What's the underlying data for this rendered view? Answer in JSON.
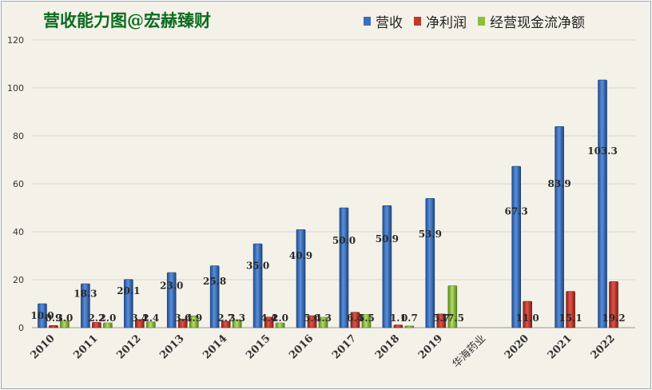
{
  "chart_data": {
    "type": "bar",
    "title": "营收能力图@宏赫臻财",
    "categories": [
      "2010",
      "2011",
      "2012",
      "2013",
      "2014",
      "2015",
      "2016",
      "2017",
      "2018",
      "2019",
      "华海药业",
      "2020",
      "2021",
      "2022"
    ],
    "series": [
      {
        "name": "营收",
        "color": "#3a6fbf",
        "values": [
          10.0,
          18.3,
          20.1,
          23.0,
          25.8,
          35.0,
          40.9,
          50.0,
          50.9,
          53.9,
          null,
          67.3,
          83.9,
          103.3
        ]
      },
      {
        "name": "净利润",
        "color": "#c0392b",
        "values": [
          0.9,
          2.2,
          3.4,
          3.6,
          2.7,
          4.4,
          5.0,
          6.4,
          1.1,
          5.7,
          null,
          11.0,
          15.1,
          19.2
        ]
      },
      {
        "name": "经营现金流净额",
        "color": "#8cbf3a",
        "values": [
          3.0,
          2.0,
          2.4,
          4.9,
          3.3,
          2.0,
          4.3,
          5.5,
          0.7,
          17.5,
          null,
          null,
          null,
          null
        ]
      }
    ],
    "data_labels": [
      [
        "10.0",
        "18.3",
        "20.1",
        "23.0",
        "25.8",
        "35.0",
        "40.9",
        "50.0",
        "50.9",
        "53.9",
        "",
        "67.3",
        "83.9",
        "103.3"
      ],
      [
        "0.9",
        "2.2",
        "3.4",
        "3.6",
        "2.7",
        "4.4",
        "5.0",
        "6.4",
        "1.1",
        "5.7",
        "",
        "11.0",
        "15.1",
        "19.2"
      ],
      [
        "3.0",
        "2.0",
        "2.4",
        "4.9",
        "3.3",
        "2.0",
        "4.3",
        "5.5",
        "0.7",
        "17.5",
        "",
        "",
        "",
        ""
      ]
    ],
    "ylim": [
      0,
      120
    ],
    "yticks": [
      0,
      20,
      40,
      60,
      80,
      100,
      120
    ],
    "grid": true,
    "legend_position": "top-right"
  }
}
